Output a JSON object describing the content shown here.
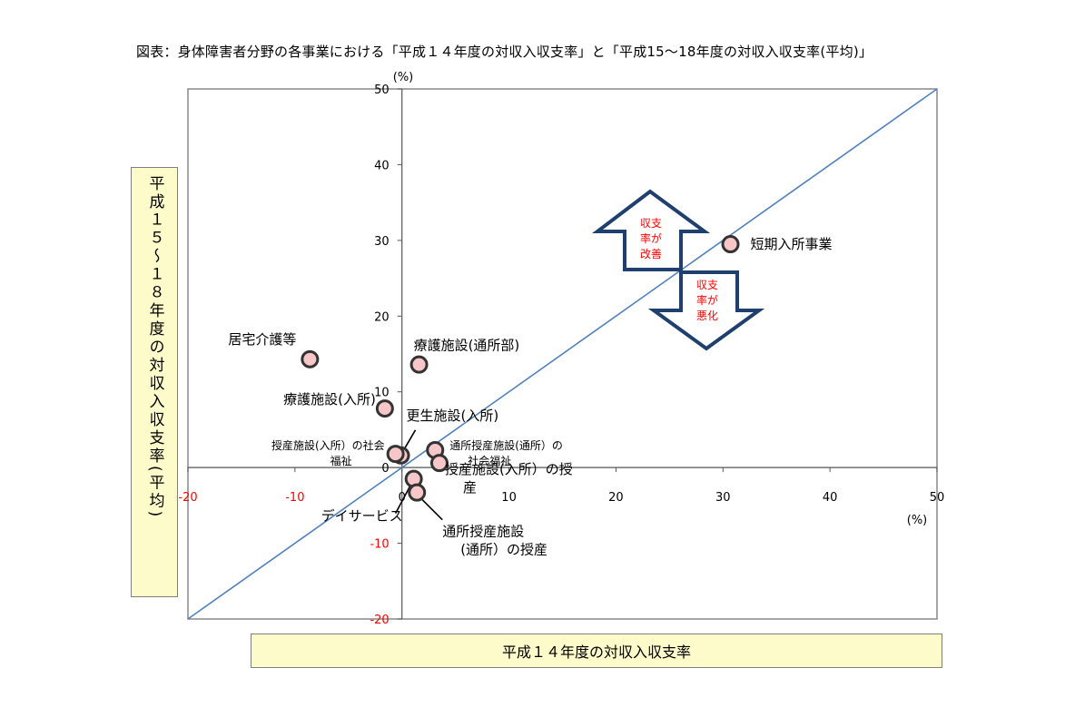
{
  "title": "図表：身体障害者分野の各事業における「平成１４年度の対収入収支率」と「平成15～18年度の対収入収支率(平均)」",
  "y_axis_title": "平成１５～１８年度の対収入収支率(平均)",
  "x_axis_title": "平成１４年度の対収入収支率",
  "arrow_up_label": [
    "収支",
    "率が",
    "改善"
  ],
  "arrow_down_label": [
    "収支",
    "率が",
    "悪化"
  ],
  "chart_data": {
    "type": "scatter",
    "title": "図表：身体障害者分野の各事業における「平成１４年度の対収入収支率」と「平成15～18年度の対収入収支率(平均)」",
    "xlabel": "平成１４年度の対収入収支率",
    "ylabel": "平成１５～１８年度の対収入収支率(平均)",
    "x_unit": "(%)",
    "y_unit": "(%)",
    "xlim": [
      -20,
      50
    ],
    "ylim": [
      -20,
      50
    ],
    "x_ticks": [
      "-20",
      "-10",
      "0",
      "10",
      "20",
      "30",
      "40",
      "50"
    ],
    "y_ticks": [
      "50",
      "40",
      "30",
      "20",
      "10",
      "0",
      "-10",
      "-20"
    ],
    "grid": false,
    "reference_line": "y = x",
    "colors": {
      "point_fill": "#f7c6c8",
      "point_stroke": "#333333",
      "diagonal": "#4f81bd",
      "negative_tick": "#ff0000",
      "arrow": "#1f3f6f",
      "arrow_text": "#ff0000"
    },
    "points": [
      {
        "label": "短期入所事業",
        "x": 30.7,
        "y": 29.5
      },
      {
        "label": "居宅介護等",
        "x": -8.6,
        "y": 14.3
      },
      {
        "label": "療護施設(通所部)",
        "x": 1.6,
        "y": 13.6
      },
      {
        "label": "療護施設(入所)",
        "x": -1.6,
        "y": 7.8
      },
      {
        "label": "更生施設(入所)",
        "x": -0.1,
        "y": 1.6
      },
      {
        "label": "授産施設(入所）の社会福祉",
        "x": -0.6,
        "y": 1.8
      },
      {
        "label": "通所授産施設(通所）の社会福祉",
        "x": 3.1,
        "y": 2.3
      },
      {
        "label": "授産施設(入所）の授産",
        "x": 3.5,
        "y": 0.6
      },
      {
        "label": "デイサービス",
        "x": 1.1,
        "y": -1.5
      },
      {
        "label": "通所授産施設(通所）の授産",
        "x": 1.4,
        "y": -3.3
      }
    ]
  }
}
